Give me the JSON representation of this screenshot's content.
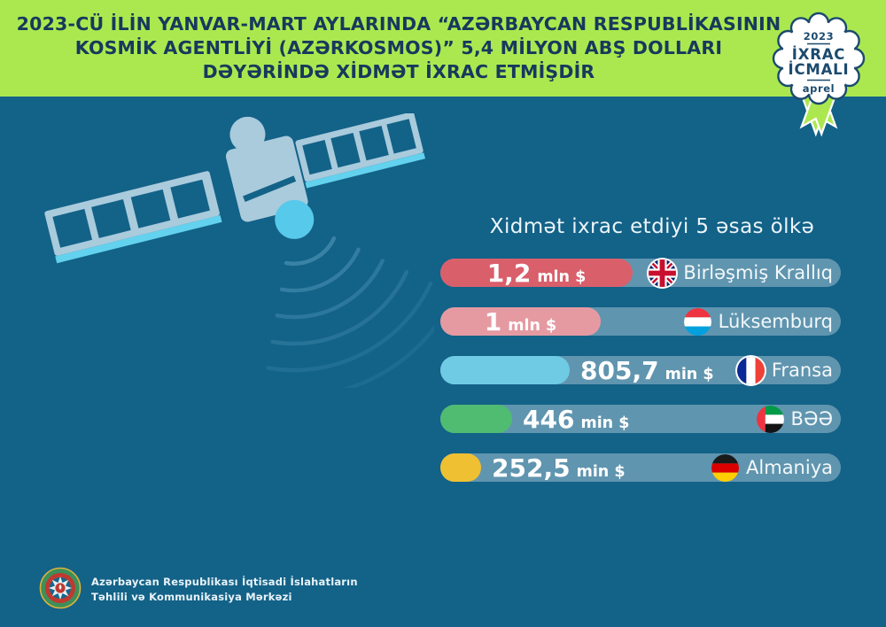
{
  "header": {
    "line1": "2023-CÜ İLİN YANVAR-MART AYLARINDA “AZƏRBAYCAN RESPUBLİKASININ",
    "line2": "KOSMİK AGENTLİYİ (AZƏRKOSMOS)” 5,4 MİLYON ABŞ DOLLARI",
    "line3": "DƏYƏRİNDƏ XİDMƏT İXRAC ETMİŞDİR",
    "badge": {
      "year": "2023",
      "title_line1": "İXRAC",
      "title_line2": "İCMALI",
      "month": "aprel"
    }
  },
  "main": {
    "section_title": "Xidmət ixrac etdiyi 5 əsas ölkə",
    "rows": [
      {
        "value": "1,2",
        "unit": "mln $",
        "country": "Birləşmiş Krallıq",
        "flag": "united-kingdom",
        "color": "#d95f6a",
        "value_mln": 1.2,
        "value_placement": "inside"
      },
      {
        "value": "1",
        "unit": "mln $",
        "country": "Lüksemburq",
        "flag": "luxembourg",
        "color": "#e59aa2",
        "value_mln": 1.0,
        "value_placement": "inside"
      },
      {
        "value": "805,7",
        "unit": "min $",
        "country": "Fransa",
        "flag": "france",
        "color": "#6fcbe3",
        "value_mln": 0.8057,
        "value_placement": "outside"
      },
      {
        "value": "446",
        "unit": "min $",
        "country": "BƏƏ",
        "flag": "uae",
        "color": "#4fbc72",
        "value_mln": 0.446,
        "value_placement": "outside"
      },
      {
        "value": "252,5",
        "unit": "min $",
        "country": "Almaniya",
        "flag": "germany",
        "color": "#f0c033",
        "value_mln": 0.2525,
        "value_placement": "outside"
      }
    ]
  },
  "chart_data": {
    "type": "bar",
    "orientation": "horizontal",
    "title": "Xidmət ixrac etdiyi 5 əsas ölkə",
    "categories": [
      "Birləşmiş Krallıq",
      "Lüksemburq",
      "Fransa",
      "BƏƏ",
      "Almaniya"
    ],
    "values_mln_usd": [
      1.2,
      1.0,
      0.8057,
      0.446,
      0.2525
    ],
    "value_labels": [
      "1,2 mln $",
      "1 mln $",
      "805,7 min $",
      "446 min $",
      "252,5 min $"
    ],
    "bar_colors": [
      "#d95f6a",
      "#e59aa2",
      "#6fcbe3",
      "#4fbc72",
      "#f0c033"
    ],
    "xlim": [
      0,
      1.2
    ],
    "grid": false,
    "legend": "none",
    "total_stated_in_header": "5,4 milyon ABŞ dolları"
  },
  "footer": {
    "org_line1": "Azərbaycan Respublikası İqtisadi İslahatların",
    "org_line2": "Təhlili və Kommunikasiya Mərkəzi"
  },
  "colors": {
    "background": "#136288",
    "header_green": "#abe84f",
    "header_text": "#17395d",
    "row_background": "rgba(255,255,255,0.33)",
    "satellite_body": "#a9cbdc",
    "satellite_accent": "#63d2ef",
    "signal_wave": "#3b84a8"
  }
}
